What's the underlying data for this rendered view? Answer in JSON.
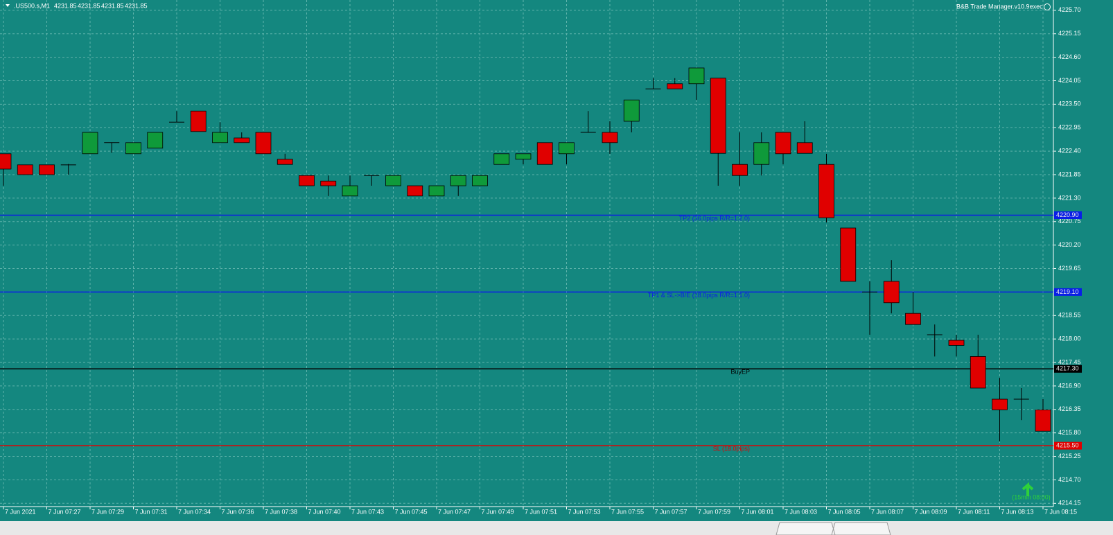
{
  "chart_data": {
    "type": "candlestick",
    "title": ".US500.s,M1",
    "quote": [
      4231.85,
      4231.85,
      4231.85,
      4231.85
    ],
    "indicator": "B&B Trade Manager.v10.9exec",
    "annotation": "(15min 08:00)",
    "up_color": "#0f9a3a",
    "down_color": "#e00000",
    "grid": true,
    "categories": [
      "7 Jun 2021",
      null,
      "7 Jun 07:27",
      null,
      "7 Jun 07:29",
      null,
      "7 Jun 07:31",
      null,
      "7 Jun 07:34",
      null,
      "7 Jun 07:36",
      null,
      "7 Jun 07:38",
      null,
      "7 Jun 07:40",
      null,
      "7 Jun 07:43",
      null,
      "7 Jun 07:45",
      null,
      "7 Jun 07:47",
      null,
      "7 Jun 07:49",
      null,
      "7 Jun 07:51",
      null,
      "7 Jun 07:53",
      null,
      "7 Jun 07:55",
      null,
      "7 Jun 07:57",
      null,
      "7 Jun 07:59",
      null,
      "7 Jun 08:01",
      null,
      "7 Jun 08:03",
      null,
      "7 Jun 08:05",
      null,
      "7 Jun 08:07",
      null,
      "7 Jun 08:09",
      null,
      "7 Jun 08:11",
      null,
      "7 Jun 08:13",
      null,
      "7 Jun 08:15"
    ],
    "open": [
      4222.34,
      4222.08,
      4222.08,
      4222.08,
      4222.34,
      4222.6,
      4222.34,
      4222.47,
      4223.08,
      4223.34,
      4222.6,
      4222.71,
      4222.84,
      4222.21,
      4221.83,
      4221.7,
      4221.35,
      4221.83,
      4221.59,
      4221.59,
      4221.35,
      4221.59,
      4221.59,
      4222.09,
      4222.21,
      4222.6,
      4222.34,
      4222.84,
      4222.84,
      4223.1,
      4223.86,
      4223.98,
      4223.98,
      4224.11,
      4222.09,
      4222.09,
      4222.84,
      4222.6,
      4222.09,
      4220.6,
      4219.1,
      4219.35,
      4218.6,
      4218.1,
      4217.97,
      4217.59,
      4216.59,
      4216.59,
      4216.34
    ],
    "high": [
      4222.34,
      4222.08,
      4222.08,
      4222.1,
      4222.84,
      4222.6,
      4222.6,
      4222.84,
      4223.34,
      4223.34,
      4223.08,
      4222.84,
      4222.84,
      4222.34,
      4221.83,
      4221.83,
      4221.83,
      4221.83,
      4221.83,
      4221.59,
      4221.59,
      4221.83,
      4221.83,
      4222.34,
      4222.34,
      4222.6,
      4222.6,
      4223.34,
      4223.1,
      4223.6,
      4224.11,
      4224.11,
      4224.35,
      4224.11,
      4222.84,
      4222.84,
      4222.84,
      4223.1,
      4222.34,
      4220.6,
      4219.35,
      4219.85,
      4219.1,
      4218.34,
      4218.1,
      4218.1,
      4217.09,
      4216.85,
      4216.59
    ],
    "low": [
      4221.59,
      4221.85,
      4221.85,
      4221.85,
      4222.34,
      4222.36,
      4222.34,
      4222.47,
      4223.08,
      4222.86,
      4222.6,
      4222.6,
      4222.34,
      4222.09,
      4221.59,
      4221.35,
      4221.35,
      4221.59,
      4221.59,
      4221.35,
      4221.35,
      4221.35,
      4221.59,
      4222.09,
      4222.09,
      4222.09,
      4222.09,
      4222.84,
      4222.34,
      4222.84,
      4223.86,
      4223.86,
      4223.6,
      4221.59,
      4221.59,
      4221.83,
      4222.09,
      4222.35,
      4220.73,
      4219.35,
      4218.1,
      4218.6,
      4218.34,
      4217.59,
      4217.59,
      4216.85,
      4215.6,
      4216.1,
      4215.84
    ],
    "close": [
      4221.98,
      4221.85,
      4221.85,
      4222.08,
      4222.84,
      4222.6,
      4222.6,
      4222.84,
      4223.08,
      4222.86,
      4222.84,
      4222.6,
      4222.34,
      4222.09,
      4221.59,
      4221.59,
      4221.59,
      4221.83,
      4221.83,
      4221.35,
      4221.59,
      4221.83,
      4221.83,
      4222.34,
      4222.34,
      4222.09,
      4222.6,
      4222.84,
      4222.6,
      4223.6,
      4223.86,
      4223.86,
      4224.35,
      4222.35,
      4221.83,
      4222.6,
      4222.34,
      4222.35,
      4220.84,
      4219.35,
      4219.1,
      4218.85,
      4218.34,
      4218.1,
      4217.85,
      4216.85,
      4216.34,
      4216.59,
      4215.84
    ],
    "levels": [
      {
        "name": "TP2 (36.0pips R/R=1:2.0)",
        "value": 4220.9,
        "value_label": "4220.90",
        "color": "#0a1ee6"
      },
      {
        "name": "TP1 & SL->B/E (18.0pips R/R=1:1.0)",
        "value": 4219.1,
        "value_label": "4219.10",
        "color": "#0a1ee6"
      },
      {
        "name": "BuyEP",
        "value": 4217.3,
        "value_label": "4217.30",
        "color": "#000000"
      },
      {
        "name": "SL (18.0pips)",
        "value": 4215.5,
        "value_label": "4215.50",
        "color": "#e00000"
      }
    ],
    "ylim": [
      4214.09,
      4225.86
    ],
    "yticks": [
      {
        "value": 4225.7,
        "label": "4225.70"
      },
      {
        "value": 4225.15,
        "label": "4225.15"
      },
      {
        "value": 4224.6,
        "label": "4224.60"
      },
      {
        "value": 4224.05,
        "label": "4224.05"
      },
      {
        "value": 4223.5,
        "label": "4223.50"
      },
      {
        "value": 4222.95,
        "label": "4222.95"
      },
      {
        "value": 4222.4,
        "label": "4222.40"
      },
      {
        "value": 4221.85,
        "label": "4221.85"
      },
      {
        "value": 4221.3,
        "label": "4221.30"
      },
      {
        "value": 4220.75,
        "label": "4220.75"
      },
      {
        "value": 4220.2,
        "label": "4220.20"
      },
      {
        "value": 4219.65,
        "label": "4219.65"
      },
      {
        "value": 4219.1,
        "label": "4219.10"
      },
      {
        "value": 4218.55,
        "label": "4218.55"
      },
      {
        "value": 4218,
        "label": "4218.00"
      },
      {
        "value": 4217.45,
        "label": "4217.45"
      },
      {
        "value": 4216.9,
        "label": "4216.90"
      },
      {
        "value": 4216.35,
        "label": "4216.35"
      },
      {
        "value": 4215.8,
        "label": "4215.80"
      },
      {
        "value": 4215.25,
        "label": "4215.25"
      },
      {
        "value": 4214.7,
        "label": "4214.70"
      },
      {
        "value": 4214.15,
        "label": "4214.15"
      }
    ]
  }
}
